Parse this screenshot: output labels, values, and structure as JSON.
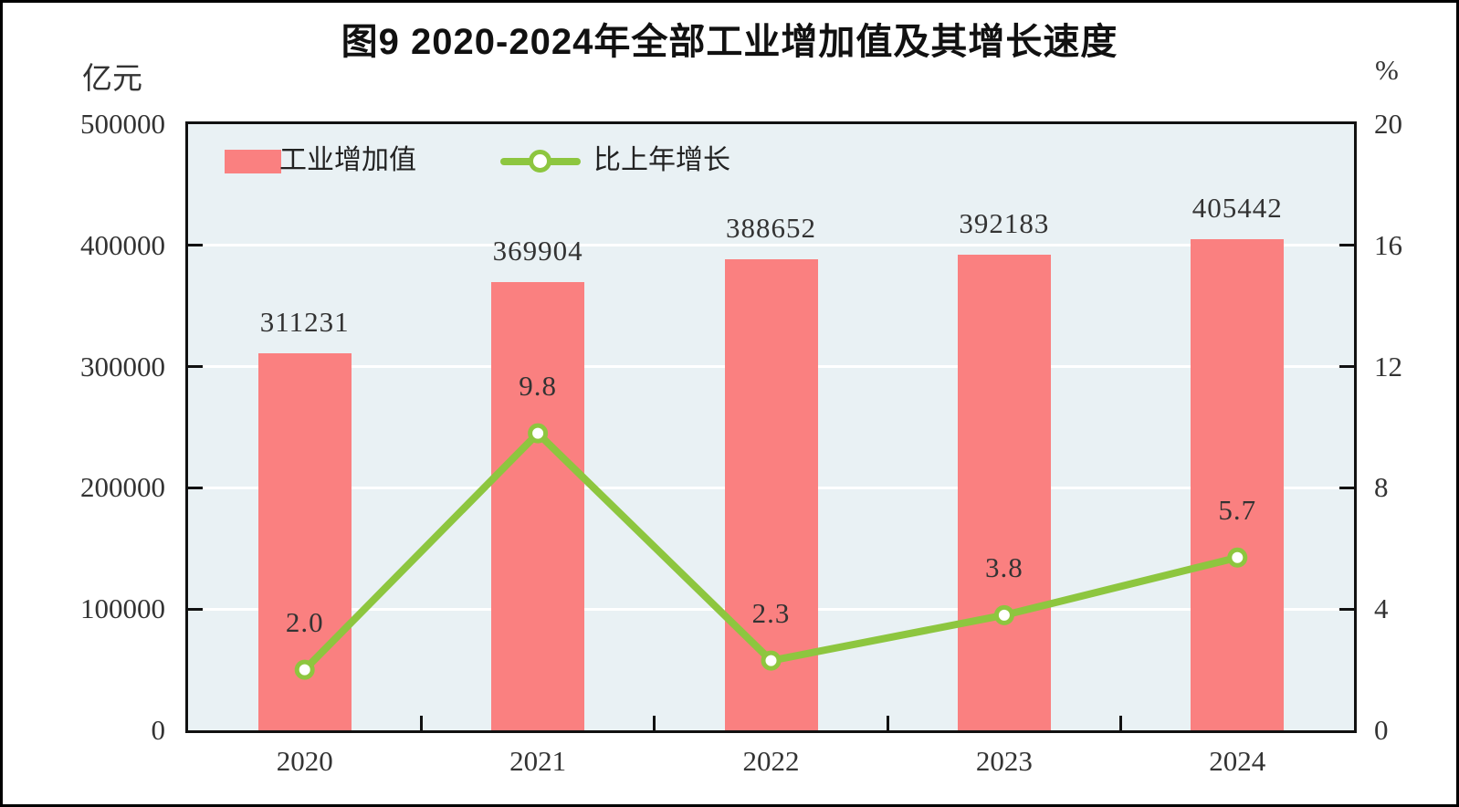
{
  "frame": {
    "title": "图9  2020-2024年全部工业增加值及其增长速度"
  },
  "chart_data": {
    "type": "bar+line",
    "title": "图9  2020-2024年全部工业增加值及其增长速度",
    "categories": [
      "2020",
      "2021",
      "2022",
      "2023",
      "2024"
    ],
    "series": [
      {
        "name": "工业增加值",
        "type": "bar",
        "axis": "left",
        "values": [
          311231,
          369904,
          388652,
          392183,
          405442
        ]
      },
      {
        "name": "比上年增长",
        "type": "line",
        "axis": "right",
        "values": [
          2.0,
          9.8,
          2.3,
          3.8,
          5.7
        ]
      }
    ],
    "bar_labels": [
      "311231",
      "369904",
      "388652",
      "392183",
      "405442"
    ],
    "line_labels": [
      "2.0",
      "9.8",
      "2.3",
      "3.8",
      "5.7"
    ],
    "left_axis": {
      "unit": "亿元",
      "min": 0,
      "max": 500000,
      "ticks": [
        "500000",
        "400000",
        "300000",
        "200000",
        "100000",
        "0"
      ]
    },
    "right_axis": {
      "unit": "%",
      "min": 0,
      "max": 20,
      "ticks": [
        "20",
        "16",
        "12",
        "8",
        "4",
        "0"
      ]
    },
    "legend": {
      "position": "top-left",
      "bar_label": "工业增加值",
      "line_label": "比上年增长"
    },
    "grid": "horizontal-white",
    "colors": {
      "bar": "#fa8080",
      "line": "#8dc63f",
      "marker_fill": "#ffffff",
      "plot_bg": "#e9f1f4",
      "grid": "#ffffff",
      "text": "#333333",
      "border": "#111111"
    }
  }
}
